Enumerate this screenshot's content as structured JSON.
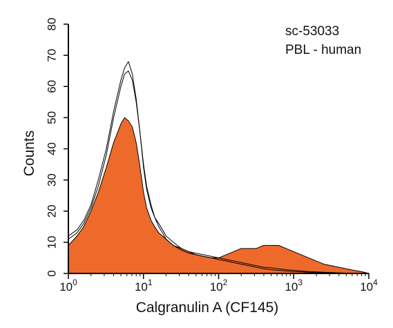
{
  "chart_data": {
    "type": "area",
    "xscale": "log",
    "xlim": [
      1,
      10000
    ],
    "ylim": [
      0,
      80
    ],
    "xlabel": "Calgranulin A (CF145)",
    "ylabel": "Counts",
    "annotations": [
      "sc-53033",
      "PBL - human"
    ],
    "x_ticks": [
      {
        "value": 1,
        "base": "10",
        "exp": "0"
      },
      {
        "value": 10,
        "base": "10",
        "exp": "1"
      },
      {
        "value": 100,
        "base": "10",
        "exp": "2"
      },
      {
        "value": 1000,
        "base": "10",
        "exp": "3"
      },
      {
        "value": 10000,
        "base": "10",
        "exp": "4"
      }
    ],
    "y_ticks": [
      0,
      10,
      20,
      30,
      40,
      50,
      60,
      70,
      80
    ],
    "colors": {
      "fill": "#ee6a2b",
      "outline": "#000000",
      "axis": "#000000"
    },
    "series": [
      {
        "style": "filled",
        "x": [
          1.0,
          1.3,
          1.6,
          2.0,
          2.5,
          3.2,
          4.0,
          5.0,
          5.6,
          6.3,
          7.1,
          8.0,
          9.0,
          10,
          11,
          12.6,
          14.1,
          16,
          18,
          20,
          25,
          32,
          40,
          50,
          63,
          80,
          100,
          126,
          158,
          200,
          251,
          316,
          398,
          501,
          631,
          794,
          1000,
          1259,
          1585,
          1995,
          2512,
          3162,
          3981,
          5012,
          6310,
          7943,
          10000
        ],
        "y": [
          9,
          12,
          15,
          20,
          26,
          34,
          42,
          48,
          50,
          49,
          47,
          42,
          34,
          26,
          21,
          17,
          15,
          13,
          12,
          11,
          9,
          8,
          7,
          6,
          5.5,
          5,
          5,
          6,
          7,
          8,
          8,
          8,
          9,
          9,
          9,
          8,
          7,
          6,
          5,
          4,
          3,
          2.5,
          2,
          1.5,
          1,
          0.6,
          0
        ]
      },
      {
        "style": "outline",
        "x": [
          1.0,
          1.3,
          1.6,
          2.0,
          2.5,
          3.2,
          4.0,
          5.0,
          5.6,
          6.3,
          7.1,
          8.0,
          9.0,
          10,
          11,
          12.6,
          14.1,
          16,
          18,
          20,
          25,
          32,
          40,
          50,
          63,
          80,
          100,
          126,
          158,
          200,
          251,
          316,
          398,
          501,
          631,
          794,
          1000,
          1259,
          1585,
          1995,
          2512,
          3162,
          3981,
          5012,
          6310,
          7943,
          10000
        ],
        "y": [
          12,
          14,
          17,
          22,
          30,
          40,
          52,
          62,
          66,
          68,
          64,
          56,
          45,
          34,
          27,
          21,
          18,
          15,
          13,
          11,
          9,
          7.5,
          6.5,
          6,
          5.5,
          5,
          4.5,
          4,
          3.5,
          3,
          2.5,
          2,
          1.5,
          1.2,
          1,
          0.8,
          0.6,
          0.5,
          0.4,
          0.3,
          0.2,
          0.1,
          0,
          0,
          0,
          0,
          0
        ]
      },
      {
        "style": "outline",
        "x": [
          1.0,
          1.3,
          1.6,
          2.0,
          2.5,
          3.2,
          4.0,
          5.0,
          5.6,
          6.3,
          7.1,
          8.0,
          9.0,
          10,
          11,
          12.6,
          14.1,
          16,
          18,
          20,
          25,
          32,
          40,
          50,
          63,
          80,
          100,
          126,
          158,
          200,
          251,
          316,
          398,
          501,
          631,
          794,
          1000,
          1259,
          1585,
          1995,
          2512,
          3162,
          3981,
          5012,
          6310,
          7943,
          10000
        ],
        "y": [
          11,
          13,
          16,
          21,
          28,
          38,
          50,
          60,
          64,
          65,
          62,
          55,
          45,
          35,
          28,
          22,
          18,
          16,
          14,
          12,
          10,
          8,
          7,
          6.5,
          6,
          5.5,
          5,
          4.5,
          4,
          3.5,
          3,
          2.5,
          2,
          1.8,
          1.5,
          1.2,
          1,
          0.8,
          0.6,
          0.5,
          0.4,
          0.3,
          0.2,
          0.1,
          0,
          0,
          0
        ]
      }
    ]
  }
}
